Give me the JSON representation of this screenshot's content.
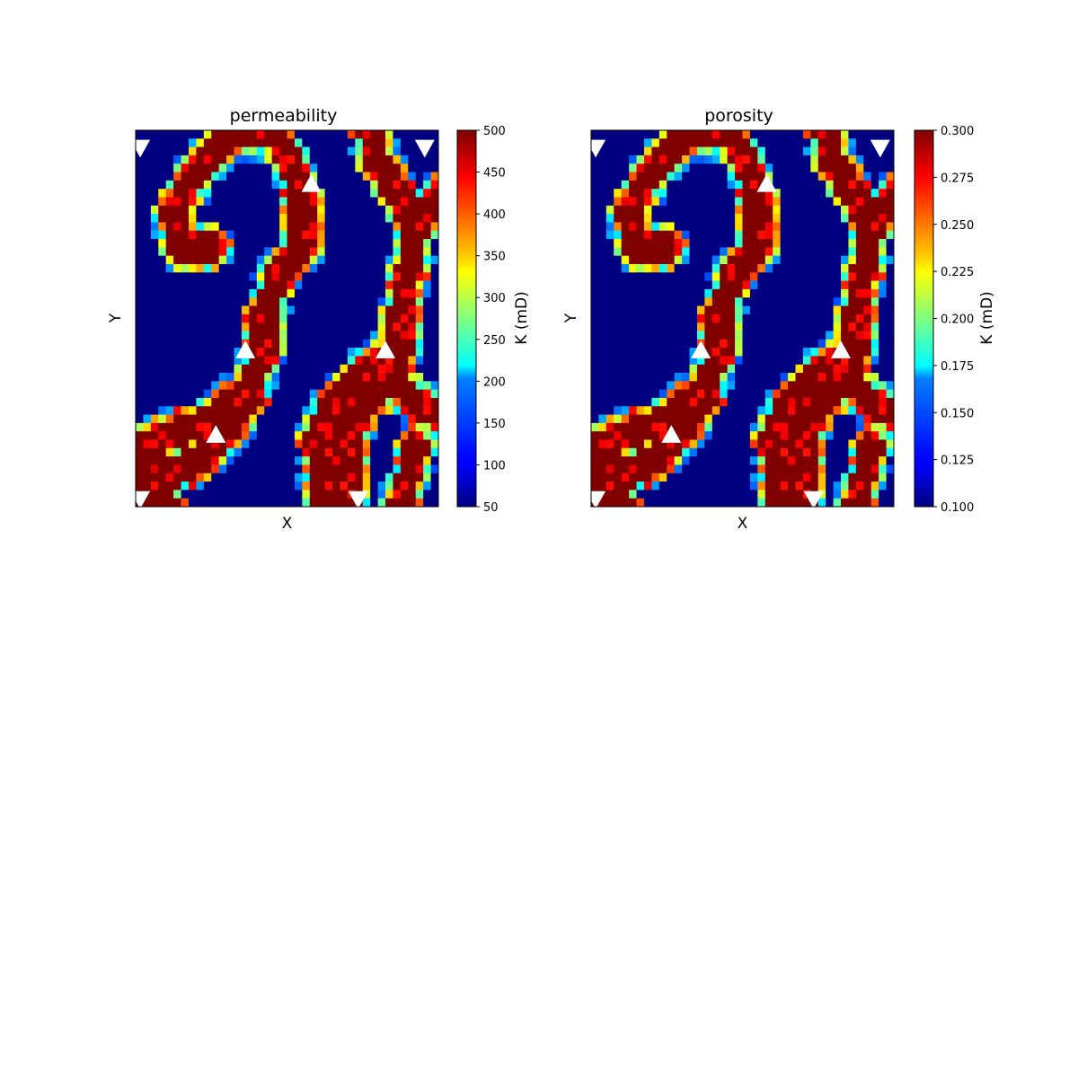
{
  "chart_data": [
    {
      "type": "heatmap",
      "title": "permeability",
      "xlabel": "X",
      "ylabel": "Y",
      "colorbar": {
        "label": "K (mD)",
        "range": [
          50,
          500
        ],
        "colormap": "jet",
        "ticks": [
          "50",
          "100",
          "150",
          "200",
          "250",
          "300",
          "350",
          "400",
          "450",
          "500"
        ]
      },
      "grid": {
        "nx": 40,
        "ny": 45
      },
      "wells": {
        "producers": [
          [
            0.6,
            2.2
          ],
          [
            38.2,
            2.2
          ],
          [
            0.6,
            44.2
          ],
          [
            29.4,
            44.2
          ]
        ],
        "injectors": [
          [
            23.2,
            6.3
          ],
          [
            14.5,
            26.2
          ],
          [
            33.0,
            26.2
          ],
          [
            10.6,
            36.3
          ]
        ]
      },
      "axes_ticks_visible": false
    },
    {
      "type": "heatmap",
      "title": "porosity",
      "xlabel": "X",
      "ylabel": "Y",
      "colorbar": {
        "label": "K (mD)",
        "range": [
          0.1,
          0.3
        ],
        "colormap": "jet",
        "ticks": [
          "0.100",
          "0.125",
          "0.150",
          "0.175",
          "0.200",
          "0.225",
          "0.250",
          "0.275",
          "0.300"
        ]
      },
      "grid": {
        "nx": 40,
        "ny": 45
      },
      "wells": {
        "producers": [
          [
            0.6,
            2.2
          ],
          [
            38.2,
            2.2
          ],
          [
            0.6,
            44.2
          ],
          [
            29.4,
            44.2
          ]
        ],
        "injectors": [
          [
            23.2,
            6.3
          ],
          [
            14.5,
            26.2
          ],
          [
            33.0,
            26.2
          ],
          [
            10.6,
            36.3
          ]
        ]
      },
      "axes_ticks_visible": false
    }
  ]
}
